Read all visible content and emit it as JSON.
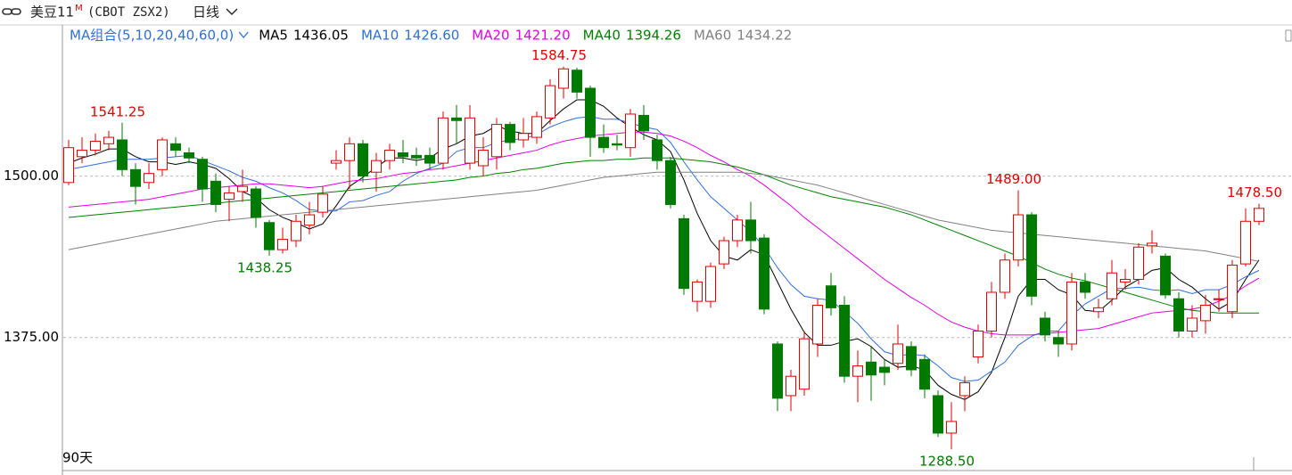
{
  "chart_data": {
    "type": "candlestick",
    "title": "美豆11",
    "title_sup": "M",
    "symbol": "(CBOT ZSX2)",
    "period": "日线",
    "ma_label": "MA组合(5,10,20,40,60,0)",
    "span_label": "90天",
    "up_color": "#e00000",
    "down_color": "#007a00",
    "ylim": [
      1272,
      1617
    ],
    "yticks": [
      {
        "value": 1500,
        "label": "1500.00"
      },
      {
        "value": 1375,
        "label": "1375.00"
      }
    ],
    "grid": true,
    "open": [
      1495,
      1515,
      1520,
      1525,
      1528,
      1505,
      1495,
      1505,
      1525,
      1518,
      1513,
      1496,
      1482,
      1488,
      1490,
      1464,
      1443,
      1450,
      1462,
      1472,
      1510,
      1512,
      1525,
      1503,
      1512,
      1518,
      1516,
      1516,
      1510,
      1545,
      1510,
      1508,
      1515,
      1540,
      1528,
      1530,
      1545,
      1568,
      1582,
      1568,
      1530,
      1525,
      1522,
      1547,
      1528,
      1512,
      1467,
      1403,
      1403,
      1432,
      1450,
      1466,
      1452,
      1370,
      1330,
      1335,
      1370,
      1415,
      1400,
      1345,
      1356,
      1352,
      1355,
      1368,
      1358,
      1330,
      1301,
      1330,
      1360,
      1380,
      1410,
      1435,
      1470,
      1390,
      1375,
      1370,
      1418,
      1395,
      1405,
      1418,
      1420,
      1446,
      1438,
      1405,
      1380,
      1388,
      1405,
      1395,
      1432,
      1465
    ],
    "high": [
      1528,
      1530,
      1533,
      1535,
      1541.25,
      1510,
      1510,
      1530,
      1530,
      1522,
      1515,
      1502,
      1492,
      1505,
      1492,
      1466,
      1460,
      1470,
      1480,
      1492,
      1520,
      1530,
      1528,
      1518,
      1525,
      1528,
      1522,
      1522,
      1550,
      1555,
      1555,
      1530,
      1545,
      1542,
      1545,
      1550,
      1575,
      1584.75,
      1584,
      1570,
      1540,
      1532,
      1552,
      1555,
      1532,
      1515,
      1470,
      1420,
      1433,
      1453,
      1470,
      1480,
      1455,
      1372,
      1350,
      1380,
      1405,
      1425,
      1407,
      1365,
      1368,
      1358,
      1385,
      1372,
      1362,
      1334,
      1325,
      1345,
      1385,
      1418,
      1440,
      1489,
      1472,
      1395,
      1380,
      1425,
      1425,
      1405,
      1435,
      1428,
      1448,
      1458,
      1440,
      1410,
      1400,
      1408,
      1412,
      1435,
      1475,
      1478.5
    ],
    "low": [
      1493,
      1510,
      1516,
      1520,
      1500,
      1478,
      1490,
      1500,
      1515,
      1510,
      1480,
      1472,
      1465,
      1480,
      1460,
      1438.25,
      1440,
      1445,
      1455,
      1468,
      1505,
      1490,
      1495,
      1488,
      1505,
      1510,
      1508,
      1505,
      1505,
      1525,
      1505,
      1500,
      1505,
      1520,
      1522,
      1525,
      1540,
      1560,
      1560,
      1515,
      1518,
      1520,
      1515,
      1528,
      1505,
      1475,
      1408,
      1395,
      1398,
      1428,
      1445,
      1440,
      1393,
      1318,
      1318,
      1330,
      1360,
      1392,
      1340,
      1325,
      1326,
      1338,
      1350,
      1345,
      1328,
      1298,
      1288.5,
      1318,
      1355,
      1375,
      1405,
      1430,
      1400,
      1372,
      1360,
      1365,
      1405,
      1390,
      1400,
      1412,
      1416,
      1440,
      1405,
      1375,
      1375,
      1378,
      1395,
      1390,
      1430,
      1462
    ],
    "close": [
      1522,
      1520,
      1527,
      1530,
      1505,
      1492,
      1502,
      1528,
      1520,
      1514,
      1490,
      1478,
      1487,
      1492,
      1468,
      1443,
      1451,
      1465,
      1470,
      1486,
      1512,
      1525,
      1500,
      1512,
      1520,
      1515,
      1514,
      1510,
      1545,
      1543,
      1545,
      1520,
      1540,
      1526,
      1533,
      1546,
      1570,
      1583,
      1565,
      1530,
      1522,
      1524,
      1548,
      1535,
      1512,
      1478,
      1413,
      1418,
      1430,
      1450,
      1466,
      1450,
      1397,
      1328,
      1345,
      1374,
      1400,
      1398,
      1345,
      1353,
      1346,
      1348,
      1370,
      1350,
      1335,
      1301,
      1310,
      1340,
      1380,
      1410,
      1435,
      1470,
      1407,
      1377,
      1370,
      1418,
      1410,
      1398,
      1425,
      1420,
      1445,
      1448,
      1408,
      1380,
      1390,
      1400,
      1405,
      1431,
      1465,
      1475
    ],
    "series": [
      {
        "name": "MA5",
        "color": "#000000",
        "legend_value": {
          "value": 1436.05,
          "label": "1436.05"
        },
        "values": [
          1510,
          1514,
          1517,
          1521,
          1521,
          1515,
          1511,
          1511,
          1509,
          1511,
          1509,
          1506,
          1498,
          1488,
          1483,
          1474,
          1468,
          1464,
          1459,
          1463,
          1477,
          1492,
          1499,
          1507,
          1514,
          1514,
          1512,
          1514,
          1521,
          1525,
          1531,
          1533,
          1539,
          1535,
          1533,
          1533,
          1543,
          1552,
          1559,
          1559,
          1554,
          1545,
          1538,
          1532,
          1528,
          1519,
          1497,
          1471,
          1450,
          1438,
          1435,
          1443,
          1439,
          1418,
          1397,
          1379,
          1369,
          1369,
          1372,
          1374,
          1368,
          1358,
          1352,
          1353,
          1350,
          1338,
          1331,
          1327,
          1333,
          1348,
          1375,
          1407,
          1420,
          1420,
          1412,
          1408,
          1396,
          1395,
          1404,
          1414,
          1420,
          1427,
          1429,
          1420,
          1414,
          1405,
          1397,
          1403,
          1420,
          1435
        ]
      },
      {
        "name": "MA10",
        "color": "#2f6fd6",
        "legend_value": {
          "value": 1426.6,
          "label": "1426.60"
        },
        "values": [
          1505,
          1507,
          1509,
          1511,
          1513,
          1513,
          1513,
          1514,
          1515,
          1516,
          1512,
          1508,
          1504,
          1499,
          1496,
          1491,
          1487,
          1481,
          1474,
          1473,
          1473,
          1480,
          1481,
          1485,
          1488,
          1496,
          1502,
          1506,
          1510,
          1519,
          1522,
          1522,
          1526,
          1528,
          1529,
          1532,
          1538,
          1542,
          1545,
          1546,
          1544,
          1544,
          1541,
          1538,
          1536,
          1526,
          1511,
          1497,
          1484,
          1475,
          1466,
          1457,
          1445,
          1429,
          1416,
          1407,
          1405,
          1404,
          1395,
          1386,
          1374,
          1364,
          1361,
          1362,
          1361,
          1353,
          1344,
          1341,
          1342,
          1349,
          1356,
          1369,
          1376,
          1380,
          1380,
          1392,
          1401,
          1407,
          1413,
          1413,
          1414,
          1412,
          1411,
          1412,
          1409,
          1412,
          1412,
          1416,
          1422,
          1427
        ]
      },
      {
        "name": "MA20",
        "color": "#e000e0",
        "legend_value": {
          "value": 1421.2,
          "label": "1421.20"
        },
        "values": [
          1476,
          1477,
          1478,
          1479,
          1480,
          1481,
          1482,
          1484,
          1486,
          1488,
          1490,
          1491,
          1492,
          1493,
          1494,
          1494,
          1493,
          1492,
          1491,
          1492,
          1494,
          1496,
          1497,
          1498,
          1500,
          1502,
          1503,
          1505,
          1506,
          1508,
          1510,
          1512,
          1514,
          1516,
          1518,
          1520,
          1524,
          1527,
          1529,
          1531,
          1532,
          1533,
          1534,
          1534,
          1533,
          1531,
          1527,
          1522,
          1516,
          1511,
          1505,
          1500,
          1493,
          1485,
          1477,
          1468,
          1460,
          1452,
          1444,
          1436,
          1428,
          1420,
          1413,
          1406,
          1400,
          1393,
          1387,
          1383,
          1380,
          1378,
          1377,
          1377,
          1377,
          1378,
          1379,
          1380,
          1381,
          1382,
          1385,
          1388,
          1391,
          1394,
          1395,
          1396,
          1397,
          1399,
          1403,
          1408,
          1415,
          1421
        ]
      },
      {
        "name": "MA40",
        "color": "#008000",
        "legend_value": {
          "value": 1394.26,
          "label": "1394.26"
        },
        "values": [
          1468,
          1469,
          1470,
          1471,
          1472,
          1473,
          1474,
          1475,
          1476,
          1477,
          1478,
          1479,
          1480,
          1481,
          1482,
          1483,
          1484,
          1485,
          1486,
          1487,
          1488,
          1489,
          1490,
          1491,
          1492,
          1493,
          1494,
          1495,
          1496,
          1497,
          1499,
          1500,
          1502,
          1503,
          1505,
          1506,
          1508,
          1510,
          1511,
          1512,
          1512,
          1513,
          1513,
          1514,
          1514,
          1514,
          1513,
          1512,
          1511,
          1509,
          1507,
          1504,
          1501,
          1497,
          1493,
          1490,
          1487,
          1484,
          1482,
          1480,
          1478,
          1476,
          1473,
          1470,
          1466,
          1462,
          1458,
          1454,
          1450,
          1446,
          1442,
          1438,
          1433,
          1428,
          1424,
          1421,
          1419,
          1416,
          1413,
          1410,
          1407,
          1404,
          1401,
          1398,
          1396,
          1395,
          1394,
          1394,
          1394,
          1394
        ]
      },
      {
        "name": "MA60",
        "color": "#808080",
        "legend_value": {
          "value": 1434.22,
          "label": "1434.22"
        },
        "values": [
          1443,
          1445,
          1447,
          1449,
          1451,
          1453,
          1455,
          1457,
          1459,
          1461,
          1463,
          1465,
          1466,
          1467,
          1468,
          1469,
          1470,
          1471,
          1472,
          1473,
          1474,
          1475,
          1476,
          1477,
          1478,
          1479,
          1480,
          1481,
          1482,
          1483,
          1484,
          1485,
          1486,
          1487,
          1488,
          1489,
          1491,
          1493,
          1495,
          1497,
          1499,
          1500,
          1501,
          1502,
          1503,
          1503,
          1503,
          1503,
          1503,
          1503,
          1503,
          1502,
          1501,
          1499,
          1497,
          1495,
          1493,
          1490,
          1487,
          1484,
          1481,
          1478,
          1475,
          1472,
          1469,
          1466,
          1464,
          1462,
          1460,
          1458,
          1457,
          1456,
          1455,
          1454,
          1453,
          1452,
          1451,
          1450,
          1449,
          1448,
          1447,
          1446,
          1445,
          1444,
          1443,
          1442,
          1440,
          1438,
          1436,
          1434
        ]
      }
    ],
    "annotations": [
      {
        "index": 4,
        "value": 1541.25,
        "label": "1541.25"
      },
      {
        "index": 15,
        "value": 1438.25,
        "label": "1438.25"
      },
      {
        "index": 37,
        "value": 1584.75,
        "label": "1584.75"
      },
      {
        "index": 66,
        "value": 1288.5,
        "label": "1288.50"
      },
      {
        "index": 71,
        "value": 1489,
        "label": "1489.00"
      },
      {
        "index": 89,
        "value": 1478.5,
        "label": "1478.50"
      }
    ]
  }
}
